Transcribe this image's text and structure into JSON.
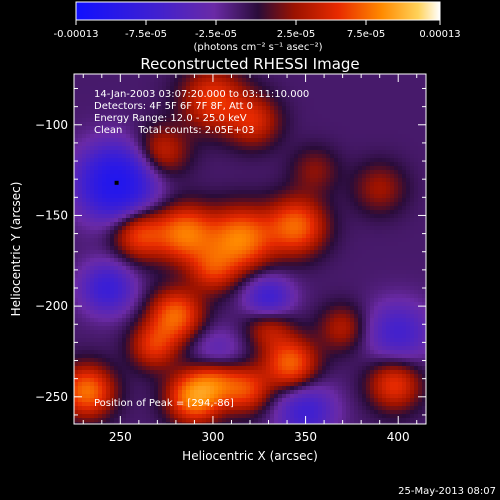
{
  "chart_data": {
    "type": "heatmap",
    "title": "Reconstructed RHESSI Image",
    "xlabel": "Heliocentric X (arcsec)",
    "ylabel": "Heliocentric Y (arcsec)",
    "xlim": [
      225,
      415
    ],
    "ylim": [
      -265,
      -72
    ],
    "x_ticks": [
      250,
      300,
      350,
      400
    ],
    "y_ticks": [
      -100,
      -150,
      -200,
      -250
    ],
    "colorbar": {
      "ticks": [
        "-0.00013",
        "-7.5e-05",
        "-2.5e-05",
        "2.5e-05",
        "7.5e-05",
        "0.00013"
      ],
      "vmin": -0.00013,
      "vmax": 0.00013,
      "units": "(photons cm⁻² s⁻¹ asec⁻²)"
    },
    "annotations": [
      "14-Jan-2003 03:07:20.000 to 03:11:10.000",
      "Detectors: 4F 5F 6F 7F 8F, Att 0",
      "Energy Range: 12.0 - 25.0 keV",
      "Clean     Total counts: 2.05E+03"
    ],
    "peak_label": "Position of Peak = [294,-86]",
    "peak": [
      294,
      -86
    ],
    "blobs": [
      {
        "x": 248,
        "y": -132,
        "w": -1.0,
        "s": 14
      },
      {
        "x": 243,
        "y": -190,
        "w": -0.55,
        "s": 10
      },
      {
        "x": 330,
        "y": -197,
        "w": -0.6,
        "s": 9
      },
      {
        "x": 400,
        "y": -215,
        "w": -0.45,
        "s": 12
      },
      {
        "x": 350,
        "y": -258,
        "w": -0.5,
        "s": 11
      },
      {
        "x": 302,
        "y": -228,
        "w": -0.35,
        "s": 10
      },
      {
        "x": 300,
        "y": -86,
        "w": 0.55,
        "s": 12
      },
      {
        "x": 322,
        "y": -98,
        "w": 0.45,
        "s": 10
      },
      {
        "x": 272,
        "y": -115,
        "w": 0.45,
        "s": 10
      },
      {
        "x": 260,
        "y": -160,
        "w": 0.6,
        "s": 10
      },
      {
        "x": 285,
        "y": -160,
        "w": 0.75,
        "s": 11
      },
      {
        "x": 315,
        "y": -163,
        "w": 0.8,
        "s": 12
      },
      {
        "x": 345,
        "y": -156,
        "w": 0.7,
        "s": 11
      },
      {
        "x": 300,
        "y": -180,
        "w": 0.45,
        "s": 9
      },
      {
        "x": 280,
        "y": -205,
        "w": 0.7,
        "s": 10
      },
      {
        "x": 268,
        "y": -222,
        "w": 0.5,
        "s": 9
      },
      {
        "x": 330,
        "y": -210,
        "w": 0.45,
        "s": 9
      },
      {
        "x": 302,
        "y": -240,
        "w": 0.55,
        "s": 9
      },
      {
        "x": 232,
        "y": -247,
        "w": 0.75,
        "s": 10
      },
      {
        "x": 290,
        "y": -250,
        "w": 0.85,
        "s": 10
      },
      {
        "x": 318,
        "y": -246,
        "w": 0.55,
        "s": 9
      },
      {
        "x": 342,
        "y": -232,
        "w": 0.7,
        "s": 10
      },
      {
        "x": 370,
        "y": -212,
        "w": 0.35,
        "s": 9
      },
      {
        "x": 398,
        "y": -243,
        "w": 0.55,
        "s": 10
      },
      {
        "x": 390,
        "y": -135,
        "w": 0.3,
        "s": 10
      },
      {
        "x": 355,
        "y": -125,
        "w": 0.25,
        "s": 9
      }
    ],
    "baseline": -0.1
  },
  "footer": {
    "timestamp": "25-May-2013 08:07"
  }
}
